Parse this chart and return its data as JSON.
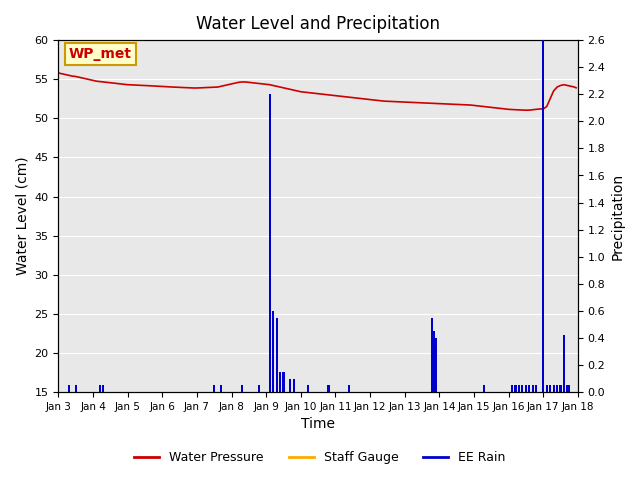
{
  "title": "Water Level and Precipitation",
  "xlabel": "Time",
  "ylabel_left": "Water Level (cm)",
  "ylabel_right": "Precipitation",
  "annotation_text": "WP_met",
  "annotation_bg": "#ffffcc",
  "annotation_border": "#cc9900",
  "annotation_text_color": "#cc0000",
  "xlim_days": [
    3,
    18
  ],
  "ylim_left": [
    15,
    60
  ],
  "ylim_right": [
    0.0,
    2.6
  ],
  "yticks_left": [
    15,
    20,
    25,
    30,
    35,
    40,
    45,
    50,
    55,
    60
  ],
  "yticks_right": [
    0.0,
    0.2,
    0.4,
    0.6,
    0.8,
    1.0,
    1.2,
    1.4,
    1.6,
    1.8,
    2.0,
    2.2,
    2.4,
    2.6
  ],
  "bg_color": "#e8e8e8",
  "grid_color": "white",
  "xtick_labels": [
    "Jan 3",
    "Jan 4",
    "Jan 5",
    "Jan 6",
    "Jan 7",
    "Jan 8",
    "Jan 9",
    "Jan 10",
    "Jan 11",
    "Jan 12",
    "Jan 13",
    "Jan 14",
    "Jan 15",
    "Jan 16",
    "Jan 17",
    "Jan 18"
  ],
  "legend_labels": [
    "Water Pressure",
    "Staff Gauge",
    "EE Rain"
  ],
  "legend_colors": [
    "#cc0000",
    "#ffaa00",
    "#0000cc"
  ],
  "legend_linestyles": [
    "-",
    "-",
    "-"
  ],
  "water_pressure_color": "#cc0000",
  "ee_rain_color": "#0000cc",
  "staff_gauge_color": "#ffaa00",
  "wp_x": [
    3.0,
    3.1,
    3.2,
    3.3,
    3.4,
    3.5,
    3.6,
    3.7,
    3.8,
    3.9,
    4.0,
    4.1,
    4.2,
    4.3,
    4.4,
    4.5,
    4.6,
    4.7,
    4.8,
    4.9,
    5.0,
    5.1,
    5.2,
    5.3,
    5.4,
    5.5,
    5.6,
    5.7,
    5.8,
    5.9,
    6.0,
    6.1,
    6.2,
    6.3,
    6.4,
    6.5,
    6.6,
    6.7,
    6.8,
    6.9,
    7.0,
    7.1,
    7.2,
    7.3,
    7.4,
    7.5,
    7.6,
    7.7,
    7.8,
    7.9,
    8.0,
    8.1,
    8.2,
    8.3,
    8.4,
    8.5,
    8.6,
    8.7,
    8.8,
    8.9,
    9.0,
    9.1,
    9.2,
    9.3,
    9.4,
    9.5,
    9.6,
    9.7,
    9.8,
    9.9,
    10.0,
    10.1,
    10.2,
    10.3,
    10.4,
    10.5,
    10.6,
    10.7,
    10.8,
    10.9,
    11.0,
    11.1,
    11.2,
    11.3,
    11.4,
    11.5,
    11.6,
    11.7,
    11.8,
    11.9,
    12.0,
    12.1,
    12.2,
    12.3,
    12.4,
    12.5,
    12.6,
    12.7,
    12.8,
    12.9,
    13.0,
    13.1,
    13.2,
    13.3,
    13.4,
    13.5,
    13.6,
    13.7,
    13.8,
    13.9,
    14.0,
    14.1,
    14.2,
    14.3,
    14.4,
    14.5,
    14.6,
    14.7,
    14.8,
    14.9,
    15.0,
    15.1,
    15.2,
    15.3,
    15.4,
    15.5,
    15.6,
    15.7,
    15.8,
    15.9,
    16.0,
    16.1,
    16.2,
    16.3,
    16.4,
    16.5,
    16.6,
    16.7,
    16.8,
    16.9,
    17.0,
    17.1,
    17.2,
    17.3,
    17.4,
    17.5,
    17.6,
    17.7,
    17.8,
    17.9,
    17.95
  ],
  "wp_y": [
    55.8,
    55.7,
    55.6,
    55.5,
    55.4,
    55.35,
    55.25,
    55.15,
    55.05,
    54.95,
    54.85,
    54.75,
    54.7,
    54.65,
    54.6,
    54.55,
    54.5,
    54.45,
    54.4,
    54.35,
    54.3,
    54.28,
    54.26,
    54.24,
    54.22,
    54.2,
    54.18,
    54.15,
    54.12,
    54.1,
    54.08,
    54.05,
    54.02,
    54.0,
    53.98,
    53.96,
    53.94,
    53.92,
    53.9,
    53.88,
    53.88,
    53.9,
    53.92,
    53.94,
    53.96,
    53.98,
    54.0,
    54.1,
    54.2,
    54.3,
    54.4,
    54.5,
    54.6,
    54.65,
    54.65,
    54.6,
    54.55,
    54.5,
    54.45,
    54.4,
    54.35,
    54.3,
    54.2,
    54.1,
    54.0,
    53.9,
    53.8,
    53.7,
    53.6,
    53.5,
    53.4,
    53.35,
    53.3,
    53.25,
    53.2,
    53.15,
    53.1,
    53.05,
    53.0,
    52.95,
    52.9,
    52.85,
    52.8,
    52.75,
    52.7,
    52.65,
    52.6,
    52.55,
    52.5,
    52.45,
    52.4,
    52.35,
    52.3,
    52.25,
    52.2,
    52.18,
    52.16,
    52.14,
    52.12,
    52.1,
    52.08,
    52.06,
    52.04,
    52.02,
    52.0,
    51.98,
    51.96,
    51.94,
    51.92,
    51.9,
    51.88,
    51.86,
    51.84,
    51.82,
    51.8,
    51.78,
    51.76,
    51.74,
    51.72,
    51.7,
    51.65,
    51.6,
    51.55,
    51.5,
    51.45,
    51.4,
    51.35,
    51.3,
    51.25,
    51.2,
    51.15,
    51.12,
    51.1,
    51.08,
    51.06,
    51.04,
    51.05,
    51.1,
    51.15,
    51.2,
    51.2,
    51.5,
    52.5,
    53.5,
    54.0,
    54.2,
    54.3,
    54.2,
    54.1,
    54.0,
    53.9
  ],
  "rain_x": [
    3.3,
    3.5,
    4.2,
    4.3,
    7.5,
    7.7,
    8.3,
    8.8,
    9.1,
    9.2,
    9.3,
    9.4,
    9.5,
    9.7,
    9.8,
    10.2,
    10.8,
    11.4,
    13.8,
    13.85,
    13.9,
    15.3,
    16.1,
    16.2,
    16.3,
    16.4,
    16.5,
    16.6,
    16.7,
    16.8,
    17.0,
    17.1,
    17.2,
    17.3,
    17.4,
    17.5,
    17.6,
    17.7,
    17.75
  ],
  "rain_y": [
    0.05,
    0.05,
    0.05,
    0.05,
    0.05,
    0.05,
    0.05,
    0.05,
    2.2,
    0.6,
    0.55,
    0.15,
    0.15,
    0.1,
    0.1,
    0.05,
    0.05,
    0.05,
    0.55,
    0.45,
    0.4,
    0.05,
    0.05,
    0.05,
    0.05,
    0.05,
    0.05,
    0.05,
    0.05,
    0.05,
    2.6,
    0.05,
    0.05,
    0.05,
    0.05,
    0.05,
    0.42,
    0.05,
    0.05
  ]
}
